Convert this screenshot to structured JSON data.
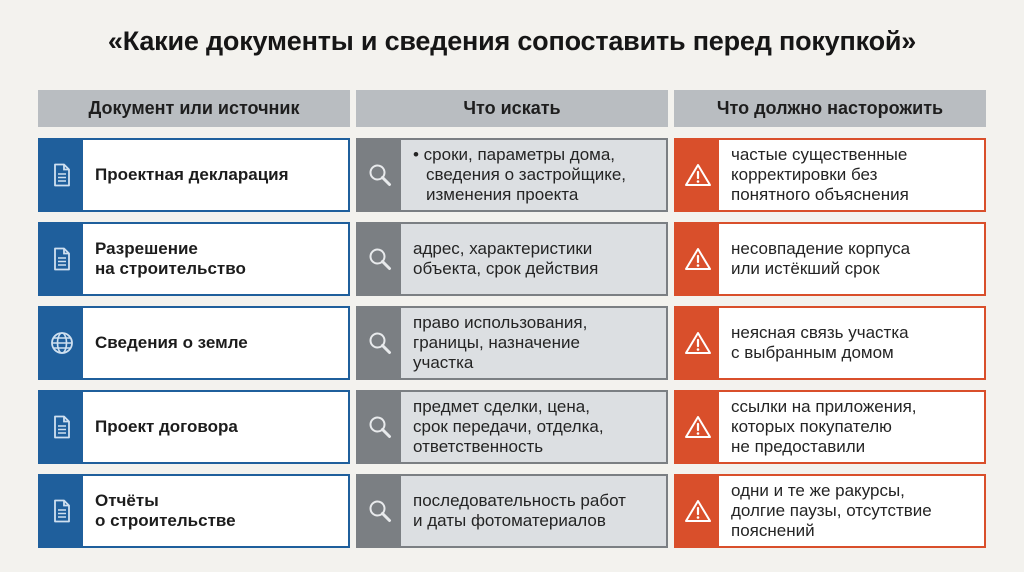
{
  "title": "«Какие документы и сведения сопоставить перед покупкой»",
  "headers": [
    "Документ или источник",
    "Что искать",
    "Что должно насторожить"
  ],
  "rows": [
    {
      "icon": "document-icon",
      "doc": [
        "Проектная декларация"
      ],
      "look": [
        "• сроки, параметры дома,",
        "сведения о застройщике,",
        "изменения проекта"
      ],
      "warn": [
        "частые существенные",
        "корректировки без",
        "понятного объяснения"
      ]
    },
    {
      "icon": "document-icon",
      "doc": [
        "Разрешение",
        "на строительство"
      ],
      "look": [
        "адрес, характеристики",
        "объекта, срок действия"
      ],
      "warn": [
        "несовпадение корпуса",
        "или истёкший срок"
      ]
    },
    {
      "icon": "globe-icon",
      "doc": [
        "Сведения о земле"
      ],
      "look": [
        "право использования,",
        "границы, назначение",
        "участка"
      ],
      "warn": [
        "неясная связь участка",
        "с выбранным домом"
      ]
    },
    {
      "icon": "document-icon",
      "doc": [
        "Проект договора"
      ],
      "look": [
        "предмет сделки, цена,",
        "срок передачи, отделка,",
        "ответственность"
      ],
      "warn": [
        "ссылки на приложения,",
        "которых покупателю",
        "не предоставили"
      ]
    },
    {
      "icon": "document-icon",
      "doc": [
        "Отчёты",
        "о строительстве"
      ],
      "look": [
        "последовательность работ",
        "и даты фотоматериалов"
      ],
      "warn": [
        "одни и те же ракурсы,",
        "долгие паузы, отсутствие",
        "пояснений"
      ]
    }
  ],
  "colors": {
    "doc": "#1f5f9c",
    "look": "#7b7f83",
    "warn": "#d94f2b",
    "header": "#b9bdc1"
  }
}
